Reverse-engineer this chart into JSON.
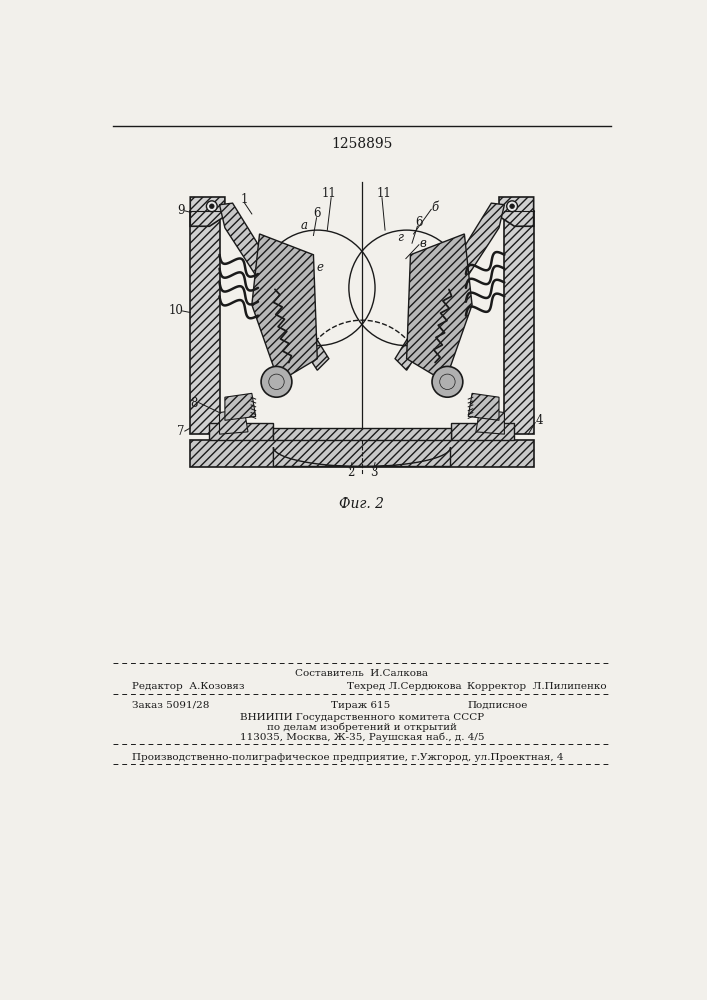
{
  "patent_number": "1258895",
  "fig_label": "Фиг. 2",
  "background_color": "#f2f0eb",
  "line_color": "#1a1a1a",
  "editor_line": "Редактор  А.Козовяз",
  "composer_top": "Составитель  И.Салкова",
  "techred_line": "Техред Л.Сердюкова",
  "corrector_line": "Корректор  Л.Пилипенко",
  "order_line": "Заказ 5091/28",
  "tirazh_line": "Тираж 615",
  "podpis_line": "Подписное",
  "vniip_line1": "ВНИИПИ Государственного комитета СССР",
  "vniip_line2": "по делам изобретений и открытий",
  "vniip_line3": "113035, Москва, Ж-35, Раушская наб., д. 4/5",
  "prod_line": "Производственно-полиграфическое предприятие, г.Ужгород, ул.Проектная, 4"
}
